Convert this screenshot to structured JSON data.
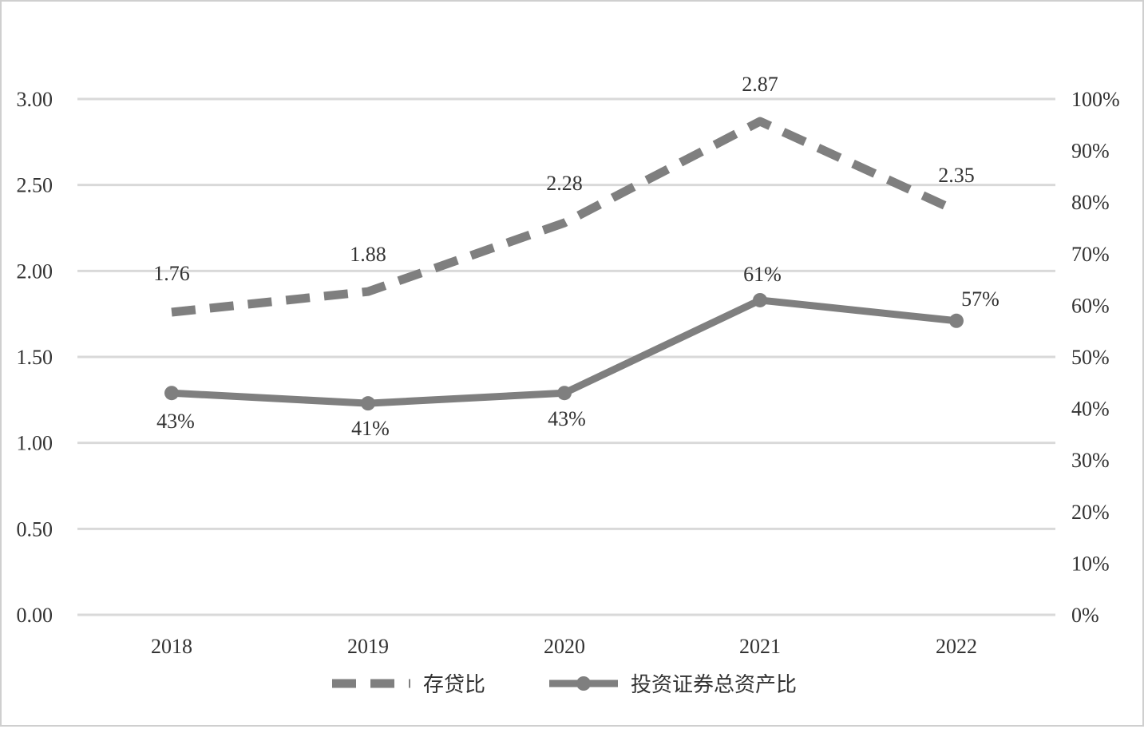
{
  "chart_data": {
    "type": "line",
    "title": "",
    "categories": [
      "2018",
      "2019",
      "2020",
      "2021",
      "2022"
    ],
    "left_axis": {
      "ylim": [
        0,
        3
      ],
      "ticks": [
        "0.00",
        "0.50",
        "1.00",
        "1.50",
        "2.00",
        "2.50",
        "3.00"
      ]
    },
    "right_axis": {
      "ylim": [
        0,
        100
      ],
      "ticks": [
        "0%",
        "10%",
        "20%",
        "30%",
        "40%",
        "50%",
        "60%",
        "70%",
        "80%",
        "90%",
        "100%"
      ]
    },
    "series": [
      {
        "name": "存贷比",
        "axis": "left",
        "style": "dashed",
        "values": [
          1.76,
          1.88,
          2.28,
          2.87,
          2.35
        ],
        "labels": [
          "1.76",
          "1.88",
          "2.28",
          "2.87",
          "2.35"
        ],
        "color": "#7f7f7f"
      },
      {
        "name": "投资证券总资产比",
        "axis": "right",
        "style": "solid-markers",
        "values": [
          43,
          41,
          43,
          61,
          57
        ],
        "labels": [
          "43%",
          "41%",
          "43%",
          "61%",
          "57%"
        ],
        "color": "#7f7f7f"
      }
    ],
    "grid": true,
    "legend_position": "bottom"
  }
}
